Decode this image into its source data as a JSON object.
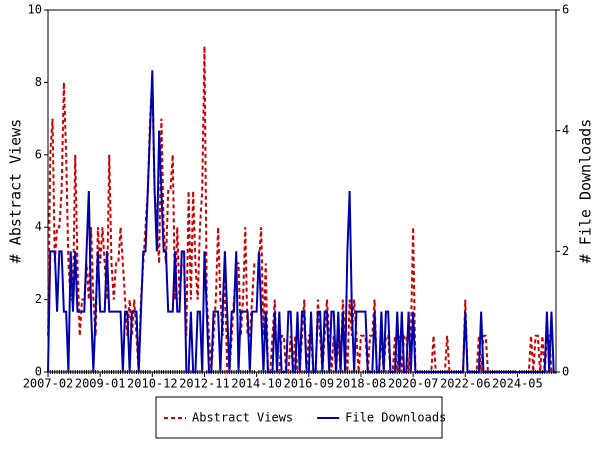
{
  "chart_data": {
    "type": "line",
    "y_label": "# Abstract Views",
    "y2_label": "# File Downloads",
    "categories": [
      "2007-02",
      null,
      null,
      null,
      null,
      null,
      null,
      null,
      null,
      null,
      null,
      null,
      null,
      null,
      null,
      null,
      null,
      null,
      null,
      null,
      null,
      null,
      null,
      "2009-01",
      null,
      null,
      null,
      null,
      null,
      null,
      null,
      null,
      null,
      null,
      null,
      null,
      null,
      null,
      null,
      null,
      null,
      null,
      null,
      null,
      null,
      null,
      "2010-12",
      null,
      null,
      null,
      null,
      null,
      null,
      null,
      null,
      null,
      null,
      null,
      null,
      null,
      null,
      null,
      null,
      null,
      null,
      null,
      null,
      null,
      null,
      "2012-11",
      null,
      null,
      null,
      null,
      null,
      null,
      null,
      null,
      null,
      null,
      null,
      null,
      null,
      null,
      null,
      null,
      null,
      null,
      null,
      null,
      null,
      null,
      "2014-10",
      null,
      null,
      null,
      null,
      null,
      null,
      null,
      null,
      null,
      null,
      null,
      null,
      null,
      null,
      null,
      null,
      null,
      null,
      null,
      null,
      null,
      null,
      "2016-09",
      null,
      null,
      null,
      null,
      null,
      null,
      null,
      null,
      null,
      null,
      null,
      null,
      null,
      null,
      null,
      null,
      null,
      null,
      null,
      null,
      null,
      null,
      "2018-08",
      null,
      null,
      null,
      null,
      null,
      null,
      null,
      null,
      null,
      null,
      null,
      null,
      null,
      null,
      null,
      null,
      null,
      null,
      null,
      null,
      null,
      null,
      "2020-07",
      null,
      null,
      null,
      null,
      null,
      null,
      null,
      null,
      null,
      null,
      null,
      null,
      null,
      null,
      null,
      null,
      null,
      null,
      null,
      null,
      null,
      null,
      "2022-06",
      null,
      null,
      null,
      null,
      null,
      null,
      null,
      null,
      null,
      null,
      null,
      null,
      null,
      null,
      null,
      null,
      null,
      null,
      null,
      null,
      null,
      null,
      "2024-05",
      null,
      null,
      null,
      null,
      null,
      null,
      null,
      null,
      null,
      null,
      null,
      null,
      null,
      null,
      null,
      null,
      null
    ],
    "series": [
      {
        "name": "Abstract Views",
        "color": "#cc0000",
        "dash": true,
        "values": [
          1,
          6,
          7,
          3,
          4,
          4,
          5,
          8,
          6,
          3,
          2,
          2,
          6,
          3,
          1,
          2,
          2,
          3,
          2,
          4,
          2,
          1,
          4,
          3,
          4,
          3,
          2,
          6,
          3,
          2,
          3,
          3,
          4,
          3,
          2,
          1,
          2,
          1,
          2,
          1,
          0,
          2,
          3,
          4,
          5,
          7,
          8,
          5,
          4,
          3,
          7,
          4,
          3,
          5,
          5,
          6,
          2,
          4,
          2,
          3,
          3,
          1,
          5,
          2,
          5,
          3,
          2,
          4,
          5,
          9,
          2,
          1,
          0,
          1,
          2,
          4,
          2,
          1,
          3,
          0,
          0,
          1,
          2,
          3,
          3,
          1,
          2,
          4,
          1,
          1,
          2,
          3,
          3,
          3,
          4,
          1,
          3,
          0,
          0,
          1,
          2,
          0,
          0,
          1,
          1,
          0,
          0,
          1,
          0,
          1,
          0,
          0,
          1,
          2,
          0,
          1,
          1,
          0,
          0,
          2,
          1,
          0,
          1,
          2,
          1,
          0,
          1,
          0,
          1,
          0,
          2,
          1,
          0,
          2,
          1,
          2,
          1,
          0,
          1,
          1,
          1,
          0,
          1,
          1,
          2,
          0,
          0,
          1,
          0,
          1,
          1,
          0,
          0,
          1,
          0,
          1,
          0,
          1,
          1,
          0,
          1,
          4,
          0,
          0,
          0,
          0,
          0,
          0,
          0,
          0,
          1,
          0,
          0,
          0,
          0,
          0,
          1,
          0,
          0,
          0,
          0,
          0,
          0,
          0,
          2,
          0,
          0,
          0,
          0,
          0,
          1,
          0,
          1,
          1,
          0,
          0,
          0,
          0,
          0,
          0,
          0,
          0,
          0,
          0,
          0,
          0,
          0,
          0,
          0,
          0,
          0,
          0,
          0,
          1,
          0,
          1,
          1,
          0,
          1,
          0,
          1,
          1,
          0,
          0,
          0
        ]
      },
      {
        "name": "File Downloads",
        "color": "#0000aa",
        "axis": "y2",
        "values": [
          0,
          2,
          2,
          2,
          1,
          2,
          2,
          1,
          1,
          0,
          2,
          1,
          2,
          1,
          1,
          1,
          1,
          2,
          3,
          1,
          0,
          1,
          2,
          1,
          1,
          1,
          2,
          1,
          1,
          1,
          1,
          1,
          1,
          0,
          1,
          1,
          0,
          1,
          1,
          1,
          0,
          1,
          2,
          2,
          3,
          4,
          5,
          3,
          2,
          4,
          3,
          2,
          2,
          1,
          1,
          1,
          2,
          1,
          1,
          2,
          2,
          0,
          0,
          1,
          0,
          0,
          1,
          1,
          0,
          2,
          1,
          0,
          0,
          1,
          1,
          1,
          0,
          1,
          2,
          1,
          0,
          1,
          1,
          2,
          0,
          1,
          1,
          1,
          1,
          0,
          1,
          1,
          1,
          2,
          1,
          0,
          1,
          0,
          0,
          0,
          1,
          0,
          1,
          0,
          0,
          0,
          1,
          1,
          0,
          0,
          1,
          0,
          1,
          1,
          0,
          0,
          1,
          0,
          0,
          1,
          1,
          0,
          1,
          1,
          0,
          1,
          1,
          0,
          1,
          0,
          1,
          0,
          2,
          3,
          1,
          0,
          1,
          1,
          1,
          1,
          1,
          0,
          0,
          0,
          1,
          0,
          0,
          1,
          0,
          1,
          1,
          0,
          0,
          0,
          1,
          0,
          1,
          0,
          0,
          1,
          0,
          1,
          0,
          0,
          0,
          0,
          0,
          0,
          0,
          0,
          0,
          0,
          0,
          0,
          0,
          0,
          0,
          0,
          0,
          0,
          0,
          0,
          0,
          0,
          1,
          0,
          0,
          0,
          0,
          0,
          0,
          1,
          0,
          0,
          0,
          0,
          0,
          0,
          0,
          0,
          0,
          0,
          0,
          0,
          0,
          0,
          0,
          0,
          0,
          0,
          0,
          0,
          0,
          0,
          0,
          0,
          0,
          0,
          0,
          0,
          1,
          0,
          1,
          0,
          0
        ]
      }
    ],
    "ylim": [
      0,
      10
    ],
    "yticks": [
      0,
      2,
      4,
      6,
      8,
      10
    ],
    "y2lim": [
      0,
      6
    ],
    "y2ticks": [
      0,
      2,
      4,
      6
    ]
  }
}
